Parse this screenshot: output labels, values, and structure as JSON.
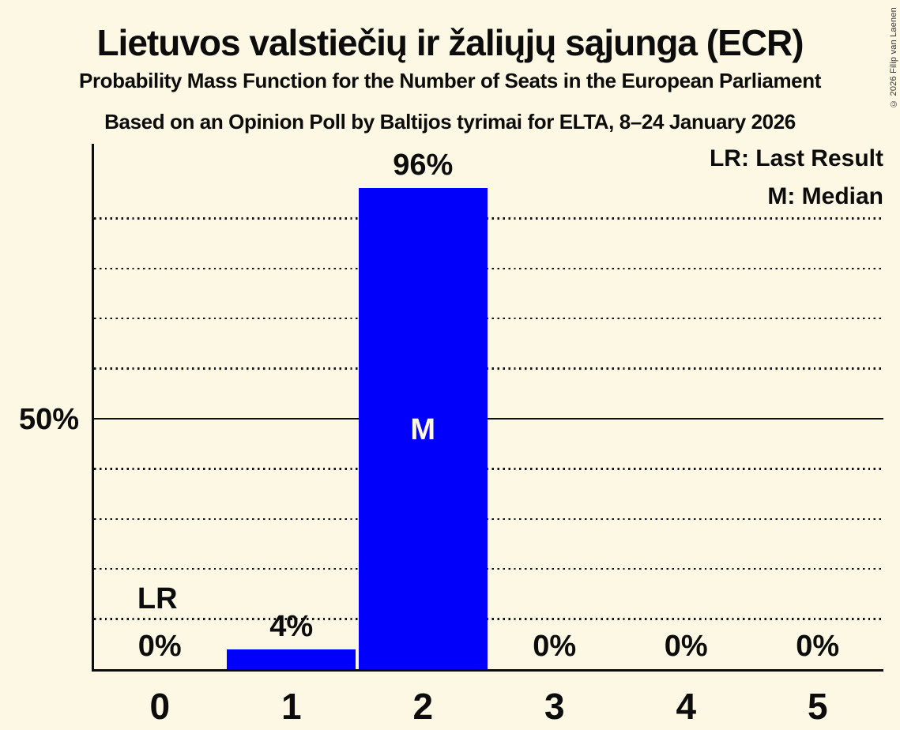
{
  "title": "Lietuvos valstiečių ir žaliųjų sąjunga (ECR)",
  "subtitle1": "Probability Mass Function for the Number of Seats in the European Parliament",
  "subtitle2": "Based on an Opinion Poll by Baltijos tyrimai for ELTA, 8–24 January 2026",
  "copyright": "© 2026 Filip van Laenen",
  "legend": {
    "last_result": "LR: Last Result",
    "median": "M: Median"
  },
  "y_axis": {
    "tick_label": "50%"
  },
  "markers": {
    "last_result": "LR",
    "median": "M"
  },
  "colors": {
    "background": "#fdf8e3",
    "bar": "#0101fb",
    "text": "#0c0c0c",
    "median_text": "#fdf8e3",
    "gridline": "#101010"
  },
  "chart_data": {
    "type": "bar",
    "title": "Lietuvos valstiečių ir žaliųjų sąjunga (ECR)",
    "subtitle": "Probability Mass Function for the Number of Seats in the European Parliament",
    "source": "Based on an Opinion Poll by Baltijos tyrimai for ELTA, 8–24 January 2026",
    "categories": [
      "0",
      "1",
      "2",
      "3",
      "4",
      "5"
    ],
    "values": [
      0,
      4,
      96,
      0,
      0,
      0
    ],
    "value_labels": [
      "0%",
      "4%",
      "96%",
      "0%",
      "0%",
      "0%"
    ],
    "ylim": [
      0,
      100
    ],
    "y_tick_shown": {
      "pct": 50,
      "label": "50%"
    },
    "gridlines_pct": [
      10,
      20,
      30,
      40,
      50,
      60,
      70,
      80,
      90
    ],
    "solid_line_pct": 50,
    "grid": "dotted",
    "legend_position": "top-right",
    "legend_entries": [
      "LR: Last Result",
      "M: Median"
    ],
    "last_result_category": "0",
    "median_category": "2"
  }
}
